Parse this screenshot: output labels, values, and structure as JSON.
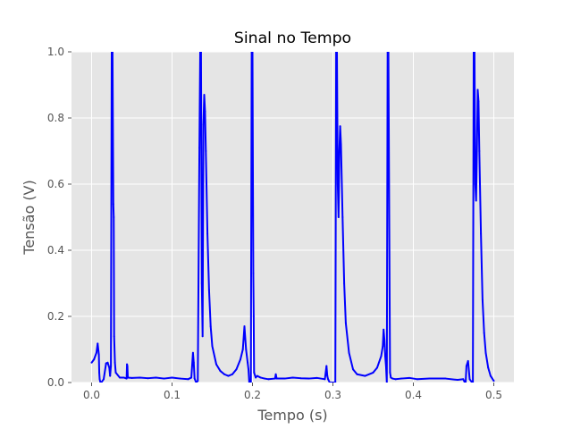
{
  "chart_data": {
    "type": "line",
    "title": "Sinal no Tempo",
    "xlabel": "Tempo (s)",
    "ylabel": "Tensão (V)",
    "xlim": [
      -0.025,
      0.525
    ],
    "ylim": [
      0.0,
      1.0
    ],
    "xticks": [
      0.0,
      0.1,
      0.2,
      0.3,
      0.4,
      0.5
    ],
    "xtick_labels": [
      "0.0",
      "0.1",
      "0.2",
      "0.3",
      "0.4",
      "0.5"
    ],
    "yticks": [
      0.0,
      0.2,
      0.4,
      0.6,
      0.8,
      1.0
    ],
    "ytick_labels": [
      "0.0",
      "0.2",
      "0.4",
      "0.6",
      "0.8",
      "1.0"
    ],
    "grid": true,
    "legend": false,
    "colors": {
      "line": "#0000ff",
      "axes_bg": "#e5e5e5",
      "grid": "#ffffff",
      "text": "#555555"
    },
    "series": [
      {
        "x": [
          0.0,
          0.003,
          0.006,
          0.0075,
          0.009,
          0.0095,
          0.01,
          0.011,
          0.012,
          0.015,
          0.018,
          0.02,
          0.022,
          0.023,
          0.024,
          0.025,
          0.026,
          0.027,
          0.0275,
          0.028,
          0.029,
          0.03,
          0.035,
          0.04,
          0.0435,
          0.044,
          0.0445,
          0.045,
          0.05,
          0.06,
          0.07,
          0.08,
          0.09,
          0.1,
          0.11,
          0.12,
          0.124,
          0.126,
          0.127,
          0.128,
          0.13,
          0.132,
          0.134,
          0.135,
          0.136,
          0.137,
          0.138,
          0.139,
          0.14,
          0.141,
          0.142,
          0.144,
          0.146,
          0.148,
          0.15,
          0.155,
          0.16,
          0.165,
          0.17,
          0.175,
          0.18,
          0.185,
          0.188,
          0.19,
          0.192,
          0.194,
          0.195,
          0.196,
          0.198,
          0.199,
          0.2,
          0.201,
          0.2015,
          0.202,
          0.204,
          0.206,
          0.21,
          0.215,
          0.22,
          0.228,
          0.229,
          0.23,
          0.24,
          0.25,
          0.26,
          0.27,
          0.28,
          0.29,
          0.292,
          0.293,
          0.294,
          0.296,
          0.3,
          0.303,
          0.304,
          0.305,
          0.306,
          0.307,
          0.308,
          0.309,
          0.31,
          0.312,
          0.314,
          0.316,
          0.32,
          0.325,
          0.33,
          0.34,
          0.35,
          0.355,
          0.36,
          0.362,
          0.363,
          0.364,
          0.365,
          0.366,
          0.367,
          0.368,
          0.369,
          0.37,
          0.371,
          0.372,
          0.374,
          0.378,
          0.385,
          0.395,
          0.405,
          0.42,
          0.44,
          0.455,
          0.462,
          0.464,
          0.465,
          0.466,
          0.468,
          0.47,
          0.473,
          0.474,
          0.475,
          0.476,
          0.477,
          0.478,
          0.479,
          0.48,
          0.481,
          0.482,
          0.484,
          0.486,
          0.488,
          0.49,
          0.493,
          0.496,
          0.5
        ],
        "y": [
          0.06,
          0.07,
          0.09,
          0.118,
          0.085,
          0.03,
          0.01,
          0.0,
          0.0,
          0.01,
          0.058,
          0.06,
          0.045,
          0.02,
          0.05,
          1.0,
          1.0,
          0.54,
          0.5,
          0.14,
          0.06,
          0.03,
          0.015,
          0.015,
          0.012,
          0.055,
          0.05,
          0.015,
          0.014,
          0.015,
          0.013,
          0.015,
          0.012,
          0.015,
          0.012,
          0.01,
          0.015,
          0.09,
          0.06,
          0.012,
          0.0,
          0.005,
          0.71,
          1.0,
          1.0,
          0.3,
          0.14,
          0.78,
          0.87,
          0.82,
          0.7,
          0.45,
          0.28,
          0.17,
          0.11,
          0.055,
          0.035,
          0.025,
          0.02,
          0.025,
          0.04,
          0.07,
          0.1,
          0.17,
          0.1,
          0.06,
          0.04,
          0.0,
          0.0,
          1.0,
          1.0,
          0.33,
          0.2,
          0.03,
          0.015,
          0.02,
          0.015,
          0.012,
          0.01,
          0.012,
          0.025,
          0.012,
          0.012,
          0.015,
          0.013,
          0.012,
          0.014,
          0.01,
          0.05,
          0.02,
          0.01,
          0.0,
          0.0,
          0.0,
          1.0,
          1.0,
          0.6,
          0.5,
          0.7,
          0.775,
          0.72,
          0.5,
          0.3,
          0.18,
          0.09,
          0.04,
          0.025,
          0.02,
          0.03,
          0.045,
          0.08,
          0.11,
          0.16,
          0.13,
          0.08,
          0.05,
          0.0,
          1.0,
          1.0,
          0.5,
          0.03,
          0.015,
          0.012,
          0.01,
          0.012,
          0.014,
          0.01,
          0.012,
          0.012,
          0.008,
          0.01,
          0.0,
          0.0,
          0.05,
          0.065,
          0.01,
          0.0,
          0.0,
          1.0,
          1.0,
          0.6,
          0.55,
          0.7,
          0.885,
          0.85,
          0.7,
          0.45,
          0.25,
          0.15,
          0.09,
          0.045,
          0.02,
          0.005
        ]
      }
    ]
  }
}
